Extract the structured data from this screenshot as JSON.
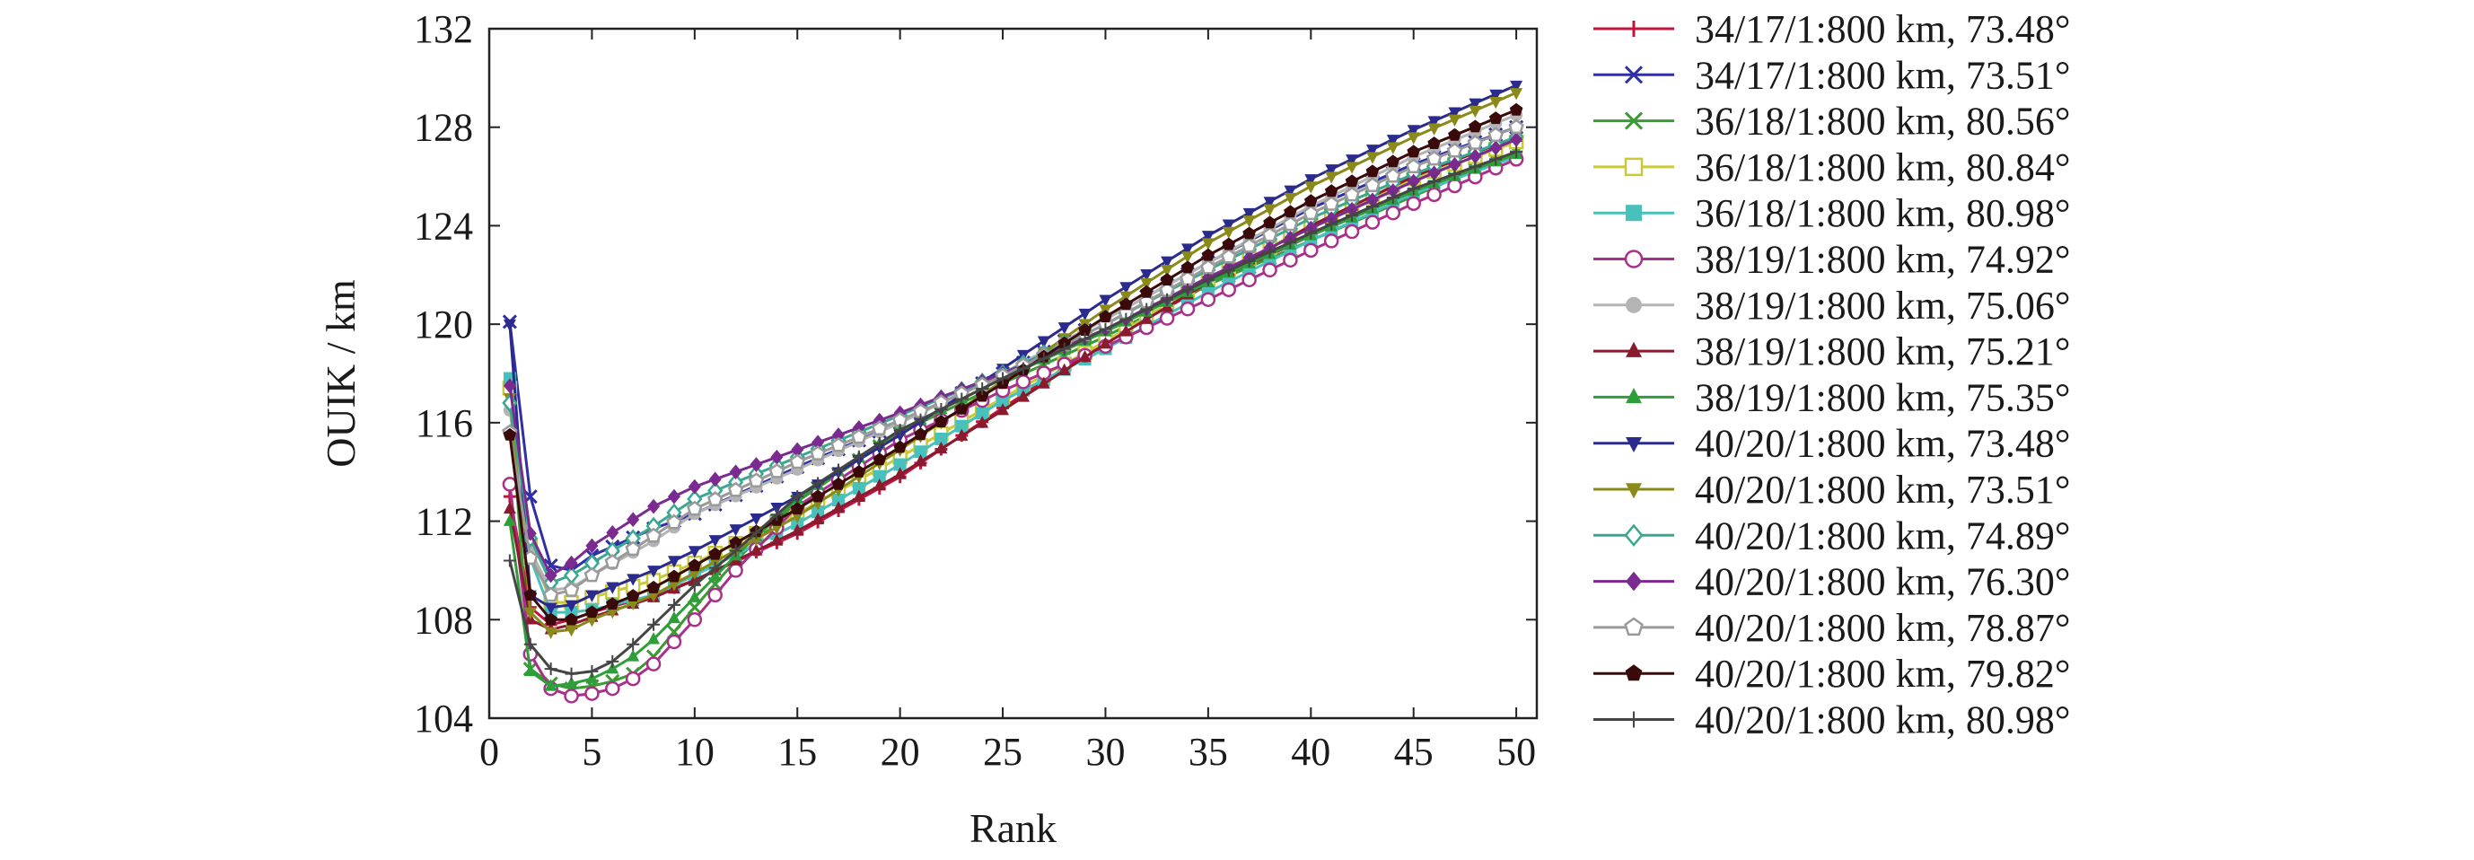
{
  "chart_data": {
    "type": "line",
    "xlabel": "Rank",
    "ylabel": "OUIK / km",
    "xlim": [
      0,
      51
    ],
    "ylim": [
      104,
      132
    ],
    "xticks": [
      0,
      5,
      10,
      15,
      20,
      25,
      30,
      35,
      40,
      45,
      50
    ],
    "yticks": [
      104,
      108,
      112,
      116,
      120,
      124,
      128,
      132
    ],
    "xtick_labels": [
      "0",
      "5",
      "10",
      "15",
      "20",
      "25",
      "30",
      "35",
      "40",
      "45",
      "50"
    ],
    "ytick_labels": [
      "104",
      "108",
      "112",
      "116",
      "120",
      "124",
      "128",
      "132"
    ],
    "grid": false,
    "legend_position": "outside-right",
    "x": [
      1,
      50
    ],
    "series": [
      {
        "name": "34/17/1:800 km, 73.48°",
        "color": "#c0143c",
        "marker": "plus",
        "key": [
          [
            1,
            113.0
          ],
          [
            2,
            108.5
          ],
          [
            3,
            107.8
          ],
          [
            4,
            108.0
          ],
          [
            5,
            108.3
          ],
          [
            8,
            109.0
          ],
          [
            10,
            109.6
          ],
          [
            15,
            111.5
          ],
          [
            20,
            113.8
          ],
          [
            25,
            116.6
          ],
          [
            30,
            119.3
          ],
          [
            35,
            121.6
          ],
          [
            40,
            123.6
          ],
          [
            45,
            125.4
          ],
          [
            50,
            127.0
          ]
        ]
      },
      {
        "name": "34/17/1:800 km, 73.51°",
        "color": "#2f2fa6",
        "marker": "x",
        "key": [
          [
            1,
            120.1
          ],
          [
            2,
            113.0
          ],
          [
            3,
            110.2
          ],
          [
            4,
            110.0
          ],
          [
            5,
            110.6
          ],
          [
            8,
            111.7
          ],
          [
            10,
            112.3
          ],
          [
            15,
            114.2
          ],
          [
            20,
            116.0
          ],
          [
            25,
            118.0
          ],
          [
            30,
            120.2
          ],
          [
            35,
            122.5
          ],
          [
            40,
            124.7
          ],
          [
            45,
            126.5
          ],
          [
            50,
            128.0
          ]
        ]
      },
      {
        "name": "36/18/1:800 km, 80.56°",
        "color": "#3a9a34",
        "marker": "x",
        "key": [
          [
            1,
            117.0
          ],
          [
            2,
            106.0
          ],
          [
            3,
            105.4
          ],
          [
            4,
            105.2
          ],
          [
            5,
            105.3
          ],
          [
            6,
            105.5
          ],
          [
            7,
            105.8
          ],
          [
            8,
            106.5
          ],
          [
            10,
            108.5
          ],
          [
            12,
            110.4
          ],
          [
            15,
            112.8
          ],
          [
            20,
            115.6
          ],
          [
            25,
            117.6
          ],
          [
            30,
            119.5
          ],
          [
            35,
            121.6
          ],
          [
            40,
            123.4
          ],
          [
            45,
            125.2
          ],
          [
            50,
            127.0
          ]
        ]
      },
      {
        "name": "36/18/1:800 km, 80.84°",
        "color": "#c8c838",
        "marker": "square-open",
        "key": [
          [
            1,
            117.4
          ],
          [
            2,
            111.0
          ],
          [
            3,
            108.7
          ],
          [
            4,
            108.7
          ],
          [
            5,
            108.9
          ],
          [
            8,
            109.6
          ],
          [
            10,
            110.3
          ],
          [
            15,
            112.3
          ],
          [
            20,
            114.6
          ],
          [
            25,
            117.0
          ],
          [
            30,
            119.3
          ],
          [
            35,
            121.8
          ],
          [
            40,
            124.0
          ],
          [
            45,
            125.9
          ],
          [
            50,
            127.4
          ]
        ]
      },
      {
        "name": "36/18/1:800 km, 80.98°",
        "color": "#48c0bb",
        "marker": "square",
        "key": [
          [
            1,
            117.8
          ],
          [
            2,
            110.5
          ],
          [
            3,
            108.3
          ],
          [
            4,
            108.3
          ],
          [
            5,
            108.4
          ],
          [
            8,
            109.0
          ],
          [
            10,
            109.8
          ],
          [
            15,
            111.9
          ],
          [
            20,
            114.3
          ],
          [
            25,
            116.9
          ],
          [
            30,
            119.0
          ],
          [
            35,
            121.3
          ],
          [
            40,
            123.4
          ],
          [
            45,
            125.3
          ],
          [
            50,
            126.8
          ]
        ]
      },
      {
        "name": "38/19/1:800 km, 74.92°",
        "color": "#a8308a",
        "marker": "circle-open",
        "key": [
          [
            1,
            113.5
          ],
          [
            2,
            106.6
          ],
          [
            3,
            105.2
          ],
          [
            4,
            104.9
          ],
          [
            5,
            105.0
          ],
          [
            6,
            105.2
          ],
          [
            7,
            105.6
          ],
          [
            8,
            106.2
          ],
          [
            10,
            108.0
          ],
          [
            12,
            110.0
          ],
          [
            15,
            112.6
          ],
          [
            20,
            115.3
          ],
          [
            25,
            117.3
          ],
          [
            30,
            119.1
          ],
          [
            35,
            121.0
          ],
          [
            40,
            123.0
          ],
          [
            45,
            124.9
          ],
          [
            50,
            126.7
          ]
        ]
      },
      {
        "name": "38/19/1:800 km, 75.06°",
        "color": "#b4b4b4",
        "marker": "circle",
        "key": [
          [
            1,
            116.5
          ],
          [
            2,
            110.8
          ],
          [
            3,
            109.2
          ],
          [
            4,
            109.3
          ],
          [
            5,
            109.8
          ],
          [
            8,
            111.2
          ],
          [
            10,
            112.3
          ],
          [
            15,
            114.1
          ],
          [
            20,
            116.0
          ],
          [
            25,
            118.0
          ],
          [
            30,
            120.2
          ],
          [
            35,
            122.5
          ],
          [
            40,
            124.8
          ],
          [
            45,
            126.8
          ],
          [
            50,
            128.5
          ]
        ]
      },
      {
        "name": "38/19/1:800 km, 75.21°",
        "color": "#8a1a2e",
        "marker": "triangle",
        "key": [
          [
            1,
            112.5
          ],
          [
            2,
            108.0
          ],
          [
            3,
            107.6
          ],
          [
            4,
            107.8
          ],
          [
            5,
            108.1
          ],
          [
            8,
            108.9
          ],
          [
            10,
            109.6
          ],
          [
            15,
            111.6
          ],
          [
            20,
            113.9
          ],
          [
            25,
            116.5
          ],
          [
            30,
            119.2
          ],
          [
            35,
            121.7
          ],
          [
            40,
            124.0
          ],
          [
            45,
            126.0
          ],
          [
            50,
            127.6
          ]
        ]
      },
      {
        "name": "38/19/1:800 km, 75.35°",
        "color": "#2e9e3a",
        "marker": "triangle",
        "key": [
          [
            1,
            112.0
          ],
          [
            2,
            105.9
          ],
          [
            3,
            105.3
          ],
          [
            4,
            105.4
          ],
          [
            5,
            105.6
          ],
          [
            6,
            106.0
          ],
          [
            7,
            106.5
          ],
          [
            8,
            107.2
          ],
          [
            10,
            108.9
          ],
          [
            12,
            110.6
          ],
          [
            15,
            112.9
          ],
          [
            20,
            115.7
          ],
          [
            25,
            117.8
          ],
          [
            30,
            119.7
          ],
          [
            35,
            121.7
          ],
          [
            40,
            123.6
          ],
          [
            45,
            125.4
          ],
          [
            50,
            126.9
          ]
        ]
      },
      {
        "name": "40/20/1:800 km, 73.48°",
        "color": "#2b2b8e",
        "marker": "triangle-down",
        "key": [
          [
            1,
            120.0
          ],
          [
            2,
            109.0
          ],
          [
            3,
            108.5
          ],
          [
            4,
            108.6
          ],
          [
            5,
            109.0
          ],
          [
            8,
            110.0
          ],
          [
            10,
            110.8
          ],
          [
            15,
            113.0
          ],
          [
            20,
            115.5
          ],
          [
            25,
            118.2
          ],
          [
            30,
            121.0
          ],
          [
            35,
            123.6
          ],
          [
            40,
            125.9
          ],
          [
            45,
            127.9
          ],
          [
            50,
            129.7
          ]
        ]
      },
      {
        "name": "40/20/1:800 km, 73.51°",
        "color": "#8a8a1a",
        "marker": "triangle-down",
        "key": [
          [
            1,
            117.0
          ],
          [
            2,
            108.3
          ],
          [
            3,
            107.5
          ],
          [
            4,
            107.6
          ],
          [
            5,
            108.0
          ],
          [
            8,
            109.0
          ],
          [
            10,
            109.9
          ],
          [
            15,
            112.2
          ],
          [
            20,
            114.9
          ],
          [
            25,
            117.7
          ],
          [
            30,
            120.6
          ],
          [
            35,
            123.3
          ],
          [
            40,
            125.6
          ],
          [
            45,
            127.6
          ],
          [
            50,
            129.4
          ]
        ]
      },
      {
        "name": "40/20/1:800 km, 74.89°",
        "color": "#3aa890",
        "marker": "diamond-open",
        "key": [
          [
            1,
            116.8
          ],
          [
            2,
            111.3
          ],
          [
            3,
            109.5
          ],
          [
            4,
            109.8
          ],
          [
            5,
            110.3
          ],
          [
            8,
            111.8
          ],
          [
            10,
            112.9
          ],
          [
            15,
            114.6
          ],
          [
            20,
            116.3
          ],
          [
            25,
            118.0
          ],
          [
            30,
            120.0
          ],
          [
            35,
            122.2
          ],
          [
            40,
            124.3
          ],
          [
            45,
            126.1
          ],
          [
            50,
            127.6
          ]
        ]
      },
      {
        "name": "40/20/1:800 km, 76.30°",
        "color": "#7b2a90",
        "marker": "diamond",
        "key": [
          [
            1,
            117.5
          ],
          [
            2,
            111.5
          ],
          [
            3,
            109.8
          ],
          [
            4,
            110.3
          ],
          [
            5,
            111.0
          ],
          [
            8,
            112.6
          ],
          [
            10,
            113.4
          ],
          [
            15,
            114.9
          ],
          [
            20,
            116.4
          ],
          [
            25,
            118.0
          ],
          [
            30,
            119.8
          ],
          [
            35,
            121.9
          ],
          [
            40,
            123.9
          ],
          [
            45,
            125.8
          ],
          [
            50,
            127.5
          ]
        ]
      },
      {
        "name": "40/20/1:800 km, 78.87°",
        "color": "#9a9a9a",
        "marker": "pentagon-open",
        "key": [
          [
            1,
            115.6
          ],
          [
            2,
            110.5
          ],
          [
            3,
            109.0
          ],
          [
            4,
            109.2
          ],
          [
            5,
            109.8
          ],
          [
            8,
            111.4
          ],
          [
            10,
            112.5
          ],
          [
            15,
            114.4
          ],
          [
            20,
            116.1
          ],
          [
            25,
            117.9
          ],
          [
            30,
            120.0
          ],
          [
            35,
            122.3
          ],
          [
            40,
            124.5
          ],
          [
            45,
            126.4
          ],
          [
            50,
            128.0
          ]
        ]
      },
      {
        "name": "40/20/1:800 km, 79.82°",
        "color": "#3a0a0a",
        "marker": "pentagon",
        "key": [
          [
            1,
            115.5
          ],
          [
            2,
            109.0
          ],
          [
            3,
            108.0
          ],
          [
            4,
            108.0
          ],
          [
            5,
            108.3
          ],
          [
            8,
            109.3
          ],
          [
            10,
            110.2
          ],
          [
            15,
            112.5
          ],
          [
            20,
            115.0
          ],
          [
            25,
            117.6
          ],
          [
            30,
            120.3
          ],
          [
            35,
            122.8
          ],
          [
            40,
            125.0
          ],
          [
            45,
            127.0
          ],
          [
            50,
            128.7
          ]
        ]
      },
      {
        "name": "40/20/1:800 km, 80.98°",
        "color": "#454545",
        "marker": "plus-thin",
        "key": [
          [
            1,
            110.4
          ],
          [
            2,
            107.0
          ],
          [
            3,
            106.0
          ],
          [
            4,
            105.8
          ],
          [
            5,
            105.9
          ],
          [
            6,
            106.3
          ],
          [
            7,
            107.0
          ],
          [
            8,
            107.8
          ],
          [
            10,
            109.4
          ],
          [
            12,
            110.8
          ],
          [
            15,
            113.0
          ],
          [
            20,
            115.7
          ],
          [
            25,
            117.8
          ],
          [
            30,
            119.8
          ],
          [
            35,
            121.8
          ],
          [
            40,
            123.7
          ],
          [
            45,
            125.5
          ],
          [
            50,
            127.0
          ]
        ]
      }
    ]
  }
}
